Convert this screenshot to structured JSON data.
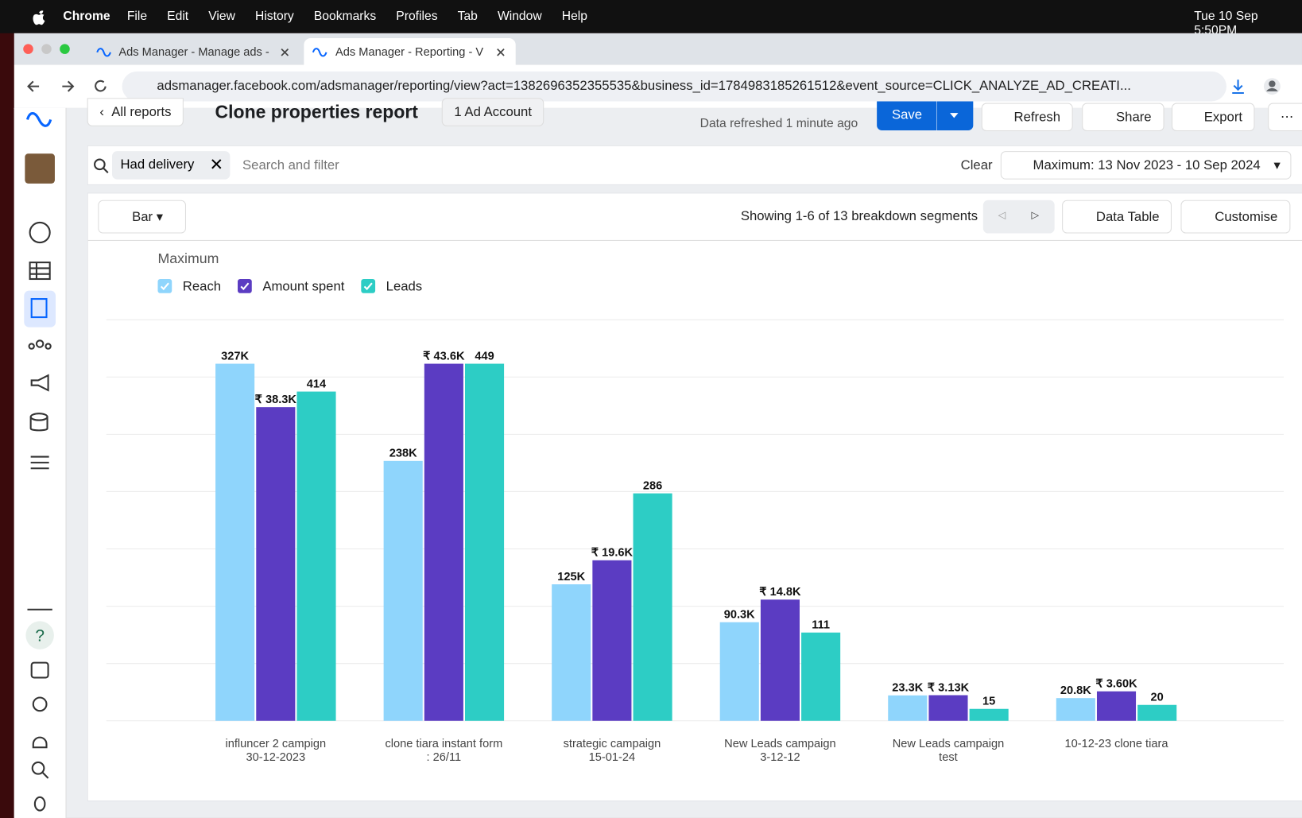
{
  "menubar": {
    "app": "Chrome",
    "menus": [
      "File",
      "Edit",
      "View",
      "History",
      "Bookmarks",
      "Profiles",
      "Tab",
      "Window",
      "Help"
    ],
    "clock": "Tue 10 Sep  5:50PM"
  },
  "tabs": [
    "Ads Manager - Manage ads -",
    "Ads Manager - Reporting - V"
  ],
  "address": "adsmanager.facebook.com/adsmanager/reporting/view?act=1382696352355535&business_id=1784983185261512&event_source=CLICK_ANALYZE_AD_CREATI...",
  "header": {
    "back": "All reports",
    "title": "Clone properties report",
    "account": "1 Ad Account",
    "status": "Data refreshed 1 minute ago",
    "save": "Save",
    "refresh": "Refresh",
    "share": "Share",
    "export": "Export"
  },
  "filter": {
    "chip": "Had delivery",
    "placeholder": "Search and filter",
    "clear": "Clear",
    "date": "Maximum: 13 Nov 2023 - 10 Sep 2024"
  },
  "toolbar": {
    "chart_type": "Bar",
    "showing": "Showing 1-6 of 13 breakdown segments",
    "data_table": "Data Table",
    "customise": "Customise"
  },
  "sidebar": {
    "help": "?"
  },
  "chart_data": {
    "type": "bar",
    "title": "Maximum",
    "categories": [
      [
        "influncer 2 campign",
        "30-12-2023"
      ],
      [
        "clone tiara instant form",
        ": 26/11"
      ],
      [
        "strategic campaign",
        "15-01-24"
      ],
      [
        "New Leads campaign",
        "3-12-12"
      ],
      [
        "New Leads campaign",
        "test"
      ],
      [
        "10-12-23 clone tiara"
      ]
    ],
    "series": [
      {
        "name": "Reach",
        "color": "#8fd5fc",
        "values": [
          327000,
          238000,
          125000,
          90300,
          23300,
          20800
        ],
        "value_labels": [
          "327K",
          "238K",
          "125K",
          "90.3K",
          "23.3K",
          "20.8K"
        ]
      },
      {
        "name": "Amount spent",
        "color": "#5b3cc2",
        "values": [
          38300,
          43600,
          19600,
          14800,
          3130,
          3600
        ],
        "value_labels": [
          "₹ 38.3K",
          "₹ 43.6K",
          "₹ 19.6K",
          "₹ 14.8K",
          "₹ 3.13K",
          "₹ 3.60K"
        ]
      },
      {
        "name": "Leads",
        "color": "#2dcdc5",
        "values": [
          414,
          449,
          286,
          111,
          15,
          20
        ]
      }
    ],
    "grid": true
  }
}
